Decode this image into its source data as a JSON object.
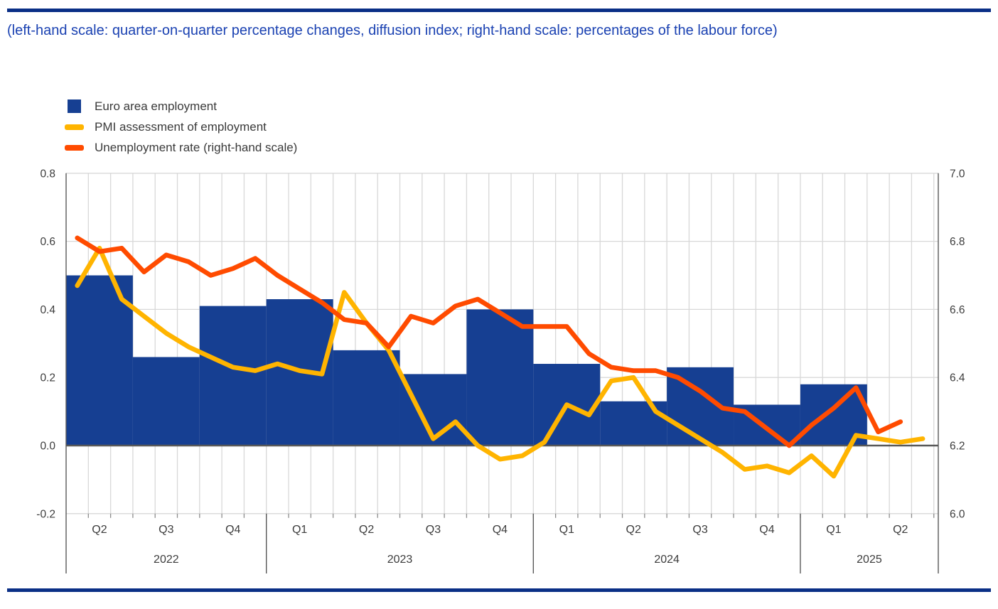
{
  "page": {
    "title": "(left-hand scale: quarter-on-quarter percentage changes, diffusion index; right-hand scale: percentages of the labour force)",
    "title_color": "#1B42B2",
    "accent_rule_color": "#0A2F86"
  },
  "chart_data": {
    "type": "bar+line",
    "grid": true,
    "legend_position": "top-left",
    "left_axis": {
      "label": "quarter-on-quarter percentage changes, diffusion index",
      "ticks": [
        0.8,
        0.6,
        0.4,
        0.2,
        0.0,
        -0.2
      ],
      "min": -0.2,
      "max": 0.8
    },
    "right_axis": {
      "label": "percentages of the labour force",
      "ticks": [
        7.0,
        6.8,
        6.6,
        6.4,
        6.2,
        6.0
      ],
      "min": 6.0,
      "max": 7.0
    },
    "x_axis": {
      "years": [
        {
          "label": "2022",
          "quarters": [
            "Q2",
            "Q3",
            "Q4"
          ]
        },
        {
          "label": "2023",
          "quarters": [
            "Q1",
            "Q2",
            "Q3",
            "Q4"
          ]
        },
        {
          "label": "2024",
          "quarters": [
            "Q1",
            "Q2",
            "Q3",
            "Q4"
          ]
        },
        {
          "label": "2025",
          "quarters": [
            "Q1",
            "Q2"
          ]
        }
      ]
    },
    "series": [
      {
        "name": "Euro area employment",
        "type": "bar",
        "axis": "left",
        "color": "#163F92",
        "quarters": [
          "2022-Q2",
          "2022-Q3",
          "2022-Q4",
          "2023-Q1",
          "2023-Q2",
          "2023-Q3",
          "2023-Q4",
          "2024-Q1",
          "2024-Q2",
          "2024-Q3",
          "2024-Q4",
          "2025-Q1"
        ],
        "values": [
          0.5,
          0.26,
          0.41,
          0.43,
          0.28,
          0.21,
          0.4,
          0.24,
          0.13,
          0.23,
          0.12,
          0.18
        ]
      },
      {
        "name": "PMI assessment of employment",
        "type": "line",
        "axis": "left",
        "color": "#FFB400",
        "start_month": "2022-04",
        "values": [
          0.47,
          0.58,
          0.43,
          0.38,
          0.33,
          0.29,
          0.26,
          0.23,
          0.22,
          0.24,
          0.22,
          0.21,
          0.45,
          0.36,
          0.28,
          0.15,
          0.02,
          0.07,
          0.0,
          -0.04,
          -0.03,
          0.01,
          0.12,
          0.09,
          0.19,
          0.2,
          0.1,
          0.06,
          0.02,
          -0.02,
          -0.07,
          -0.06,
          -0.08,
          -0.03,
          -0.09,
          0.03,
          0.02,
          0.01,
          0.02
        ]
      },
      {
        "name": "Unemployment rate (right-hand scale)",
        "type": "line",
        "axis": "right",
        "color": "#FF4B00",
        "start_month": "2022-04",
        "values": [
          6.81,
          6.77,
          6.78,
          6.71,
          6.76,
          6.74,
          6.7,
          6.72,
          6.75,
          6.7,
          6.66,
          6.62,
          6.57,
          6.56,
          6.49,
          6.58,
          6.56,
          6.61,
          6.63,
          6.59,
          6.55,
          6.55,
          6.55,
          6.47,
          6.43,
          6.42,
          6.42,
          6.4,
          6.36,
          6.31,
          6.3,
          6.25,
          6.2,
          6.26,
          6.31,
          6.37,
          6.24,
          6.27
        ]
      }
    ]
  }
}
